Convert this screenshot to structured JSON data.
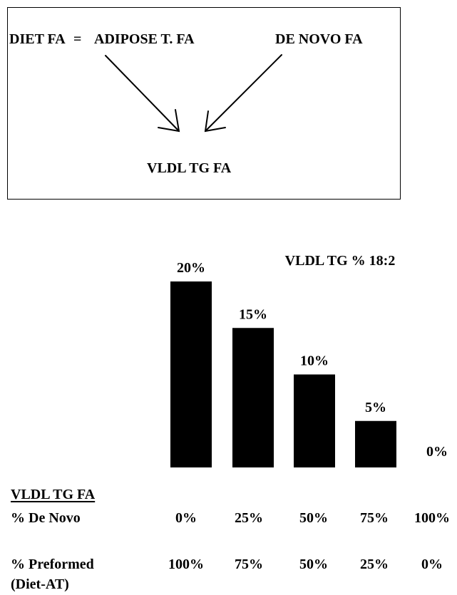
{
  "diagram": {
    "diet_fa": "DIET FA",
    "equals": "=",
    "adipose_fa": "ADIPOSE T. FA",
    "de_novo_fa": "DE NOVO FA",
    "vldl_tg_fa": "VLDL TG FA"
  },
  "chart_data": {
    "type": "bar",
    "title": "VLDL TG % 18:2",
    "categories": [
      "0%",
      "25%",
      "50%",
      "75%",
      "100%"
    ],
    "values": [
      20,
      15,
      10,
      5,
      0
    ],
    "value_labels": [
      "20%",
      "15%",
      "10%",
      "5%",
      "0%"
    ],
    "ylim": [
      0,
      20
    ],
    "grid": false,
    "bar_color": "#000000"
  },
  "table": {
    "header": "VLDL TG FA",
    "rows": [
      {
        "label": "% De Novo",
        "values": [
          "0%",
          "25%",
          "50%",
          "75%",
          "100%"
        ]
      },
      {
        "label_line1": "% Preformed",
        "label_line2": "(Diet-AT)",
        "values": [
          "100%",
          "75%",
          "50%",
          "25%",
          "0%"
        ]
      }
    ]
  }
}
